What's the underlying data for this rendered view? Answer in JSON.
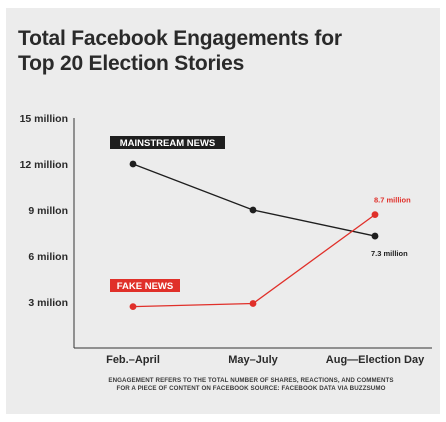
{
  "title_line1": "Total Facebook Engagements for",
  "title_line2": "Top 20 Election Stories",
  "footnote_line1": "ENGAGEMENT REFERS TO THE TOTAL NUMBER OF SHARES, REACTIONS, AND COMMENTS",
  "footnote_line2": "FOR A PIECE OF CONTENT ON FACEBOOK SOURCE: FACEBOOK DATA VIA BUZZSUMO",
  "colors": {
    "mainstream": "#1e1e1e",
    "fake": "#e0302a",
    "axis": "#333333",
    "background": "#ececec"
  },
  "chart_data": {
    "type": "line",
    "title": "Total Facebook Engagements for Top 20 Election Stories",
    "categories": [
      "Feb.–April",
      "May–July",
      "Aug—Election Day"
    ],
    "y_ticks": [
      3,
      6,
      9,
      12,
      15
    ],
    "y_tick_labels": [
      "3 milion",
      "6 milion",
      "9 millon",
      "12 million",
      "15 million"
    ],
    "ylim": [
      0,
      15
    ],
    "grid": false,
    "series": [
      {
        "name": "MAINSTREAM NEWS",
        "values": [
          12,
          9,
          7.3
        ],
        "end_label": "7.3 million"
      },
      {
        "name": "FAKE NEWS",
        "values": [
          2.7,
          2.9,
          8.7
        ],
        "end_label": "8.7 million"
      }
    ]
  }
}
